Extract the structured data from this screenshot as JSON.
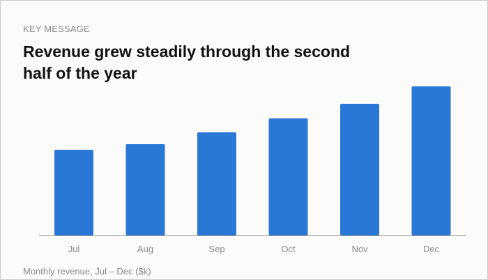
{
  "eyebrow": "KEY MESSAGE",
  "headline": "Revenue grew steadily through the second half of the year",
  "caption": "Monthly revenue, Jul – Dec ($k)",
  "colors": {
    "bar": "#2a78d6",
    "baseline": "#9a9a9a",
    "tick_label": "#8a8a8a"
  },
  "chart_data": {
    "type": "bar",
    "categories": [
      "Jul",
      "Aug",
      "Sep",
      "Oct",
      "Nov",
      "Dec"
    ],
    "values": [
      123,
      131,
      148,
      168,
      189,
      214
    ],
    "title": "",
    "xlabel": "",
    "ylabel": "",
    "ylim": [
      0,
      214
    ],
    "grid": false,
    "legend": "none"
  }
}
